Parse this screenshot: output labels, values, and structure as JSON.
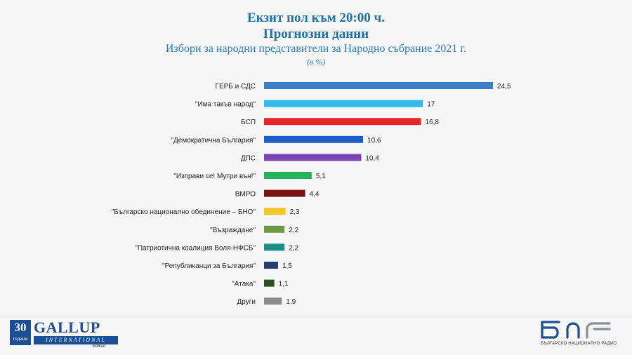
{
  "header": {
    "line1": "Екзит пол към 20:00 ч.",
    "line2": "Прогнозни данни",
    "line3": "Избори за народни представители за Народно събрание 2021 г.",
    "unit": "(в %)"
  },
  "chart_data": {
    "type": "bar",
    "orientation": "horizontal",
    "categories": [
      "ГЕРБ и СДС",
      "\"Има такъв народ\"",
      "БСП",
      "\"Демократична България\"",
      "ДПС",
      "\"Изправи се! Мутри вън!\"",
      "ВМРО",
      "\"Българско национално обединение – БНО\"",
      "\"Възраждане\"",
      "\"Патриотична коалиция Воля-НФСБ\"",
      "\"Републиканци за България\"",
      "\"Атака\"",
      "Други"
    ],
    "values": [
      24.5,
      17,
      16.8,
      10.6,
      10.4,
      5.1,
      4.4,
      2.3,
      2.2,
      2.2,
      1.5,
      1.1,
      1.9
    ],
    "value_labels": [
      "24,5",
      "17",
      "16,8",
      "10,6",
      "10,4",
      "5,1",
      "4,4",
      "2,3",
      "2,2",
      "2,2",
      "1,5",
      "1,1",
      "1,9"
    ],
    "colors": [
      "#3c7fc4",
      "#33b8ea",
      "#e8262b",
      "#1c5dc8",
      "#7b45b5",
      "#27b05a",
      "#7a1313",
      "#f2c72a",
      "#6e9a45",
      "#1f8f86",
      "#243f6b",
      "#2e4d1f",
      "#8c8c8c"
    ],
    "xlim": [
      0,
      24.5
    ],
    "grid": false,
    "legend": "none"
  },
  "logos": {
    "gallup_years": "30",
    "gallup_years_sub": "години",
    "gallup_name": "GALLUP",
    "gallup_intl": "INTERNATIONAL",
    "gallup_region": "Balkan",
    "bnr_name": "БЪЛГАРСКО НАЦИОНАЛНО РАДИО",
    "bnr_mark": "бнр"
  }
}
